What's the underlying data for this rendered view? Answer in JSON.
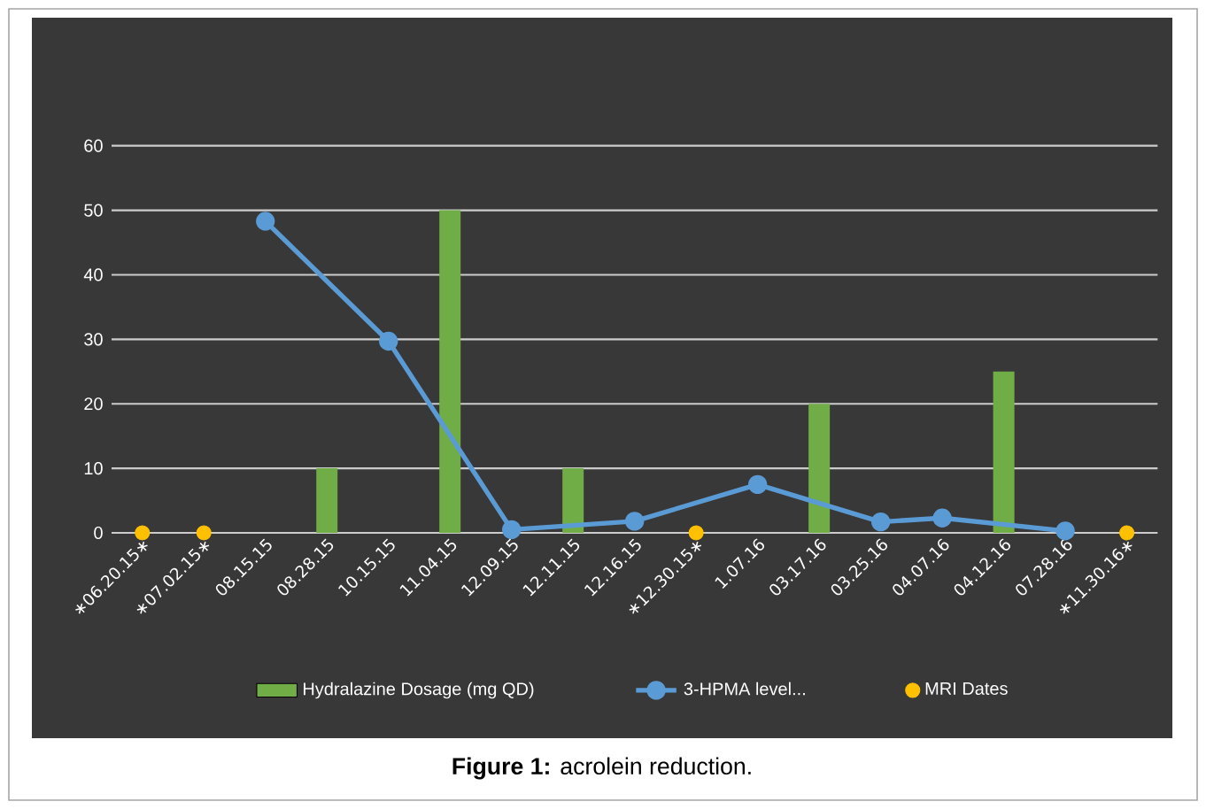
{
  "chart_data": {
    "type": "bar",
    "categories": [
      "∗06.20.15∗",
      "∗07.02.15∗",
      "08.15.15",
      "08.28.15",
      "10.15.15",
      "11.04.15",
      "12.09.15",
      "12.11.15",
      "12.16.15",
      "∗12.30.15∗",
      "1.07.16",
      "03.17.16",
      "03.25.16",
      "04.07.16",
      "04.12.16",
      "07.28.16",
      "∗11.30.16∗"
    ],
    "series": [
      {
        "name": "Hydralazine Dosage (mg QD)",
        "color": "#70ad47",
        "values": [
          null,
          null,
          null,
          10,
          null,
          50,
          null,
          10,
          null,
          null,
          null,
          20,
          null,
          null,
          25,
          null,
          null
        ]
      },
      {
        "name": "3-HPMA level...",
        "type": "line",
        "color": "#5b9bd5",
        "marker": "circle",
        "values": [
          null,
          null,
          48.3,
          null,
          29.7,
          null,
          0.5,
          null,
          1.8,
          null,
          7.5,
          null,
          1.7,
          2.3,
          null,
          0.3,
          null
        ]
      },
      {
        "name": "MRI Dates",
        "type": "scatter",
        "color": "#ffc000",
        "marker": "circle",
        "values": [
          0,
          0,
          null,
          null,
          null,
          null,
          null,
          null,
          null,
          0,
          null,
          null,
          null,
          null,
          null,
          null,
          0
        ]
      }
    ],
    "ylim": [
      0,
      60
    ],
    "yticks": [
      0,
      10,
      20,
      30,
      40,
      50,
      60
    ],
    "grid": "y",
    "legend": "bottom",
    "annotations": [
      "**Figure 1:** acrolein reduction."
    ]
  }
}
